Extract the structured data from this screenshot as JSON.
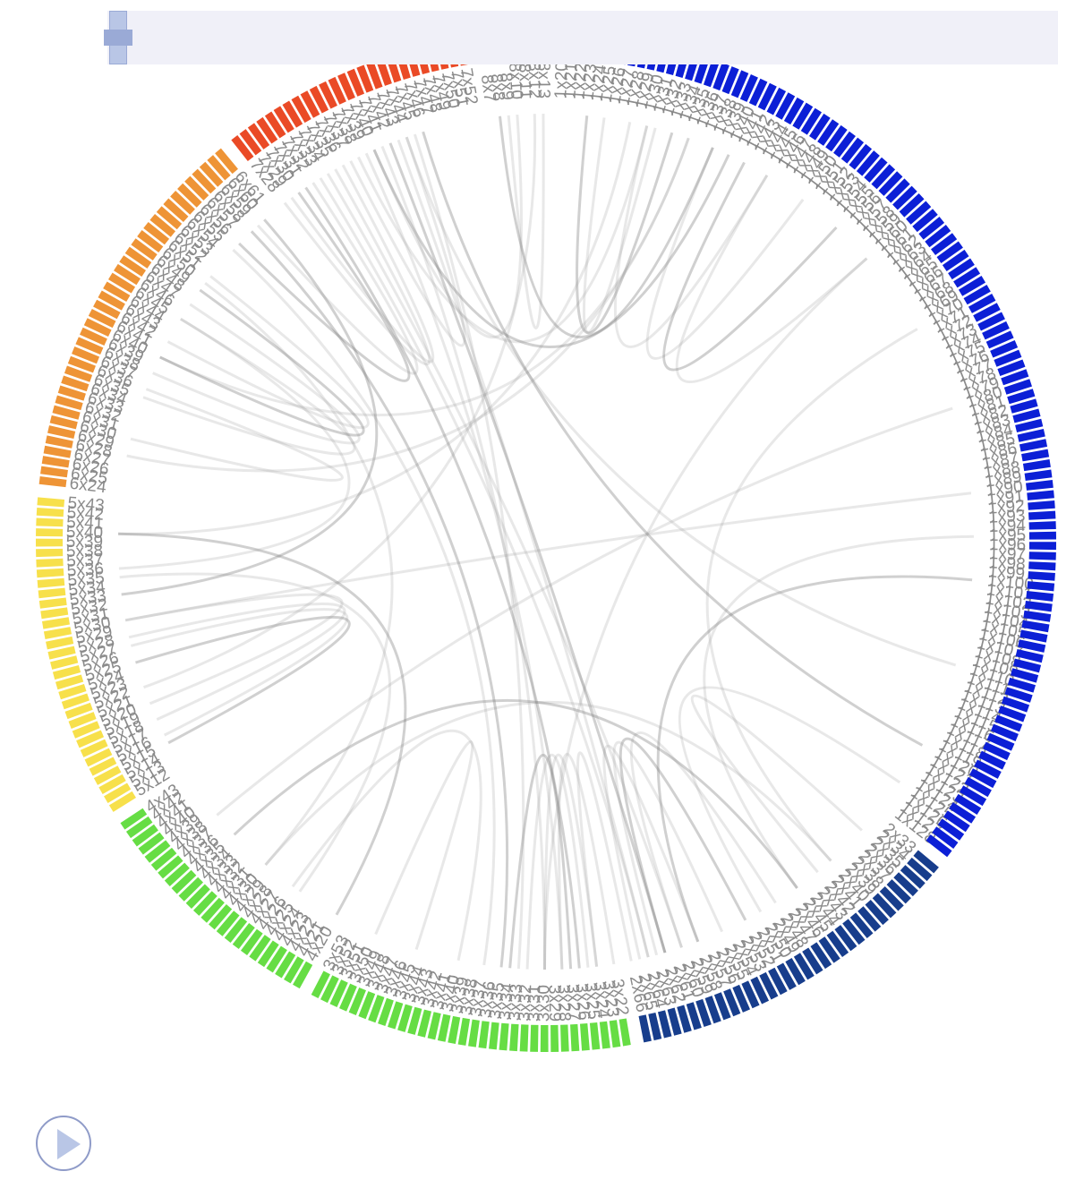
{
  "groups": [
    {
      "id": "1",
      "color": "#0c1fd6",
      "prefix": "1x",
      "from": 20,
      "to": 128
    },
    {
      "id": "2",
      "color": "#173d8c",
      "prefix": "2x",
      "from": 33,
      "to": 66
    },
    {
      "id": "3",
      "color": "#66dd44",
      "prefix": "3x",
      "from": 22,
      "to": 53
    },
    {
      "id": "4",
      "color": "#66dd44",
      "prefix": "4x",
      "from": 20,
      "to": 43
    },
    {
      "id": "5",
      "color": "#f7e04b",
      "prefix": "5x",
      "from": 12,
      "to": 43
    },
    {
      "id": "6",
      "color": "#ee9436",
      "prefix": "6x",
      "from": 24,
      "to": 61
    },
    {
      "id": "7",
      "color": "#ea4a26",
      "prefix": "7x",
      "from": 28,
      "to": 52
    },
    {
      "id": "8",
      "color": "#e8321c",
      "prefix": "8x",
      "from": 7,
      "to": 13
    }
  ],
  "chart_data": {
    "type": "chord",
    "groups_order": [
      "1x",
      "2x",
      "3x",
      "4x",
      "5x",
      "6x",
      "7x",
      "8x"
    ],
    "visible_labels_sample": [
      "1x20",
      "1x21",
      "1x22",
      "1x128",
      "2x33",
      "2x60",
      "2x61",
      "2x62",
      "2x63",
      "2x64",
      "2x65",
      "2x66",
      "3x22",
      "3x23",
      "3x24",
      "3x25",
      "3x26",
      "3x27",
      "3x28",
      "3x30",
      "3x33",
      "4x20",
      "4x43",
      "5x43",
      "6x24",
      "6x61",
      "6x60",
      "6x59",
      "6x58",
      "7x28",
      "7x29",
      "7x30",
      "7x31",
      "7x32",
      "7x33",
      "7x34",
      "7x35",
      "7x36",
      "7x37",
      "7x38",
      "7x39",
      "7x40",
      "7x41",
      "7x42",
      "7x43",
      "7x44",
      "7x45",
      "7x46",
      "8x7",
      "8x13"
    ]
  },
  "links": [
    [
      "1x23",
      "1x33"
    ],
    [
      "1x25",
      "1x31"
    ],
    [
      "1x45",
      "1x30"
    ],
    [
      "1x50",
      "1x38"
    ],
    [
      "1x55",
      "1x42"
    ],
    [
      "1x60",
      "1x45"
    ],
    [
      "1x70",
      "2x40"
    ],
    [
      "1x95",
      "2x45"
    ],
    [
      "1x100",
      "2x58"
    ],
    [
      "1x35",
      "6x40"
    ],
    [
      "1x28",
      "5x40"
    ],
    [
      "1x30",
      "7x38"
    ],
    [
      "1x40",
      "7x40"
    ],
    [
      "1x60",
      "3x30"
    ],
    [
      "1x90",
      "5x30"
    ],
    [
      "1x110",
      "7x44"
    ],
    [
      "1x120",
      "7x46"
    ],
    [
      "1x125",
      "2x50"
    ],
    [
      "2x35",
      "2x42"
    ],
    [
      "2x48",
      "2x60"
    ],
    [
      "2x52",
      "2x62"
    ],
    [
      "2x55",
      "2x63"
    ],
    [
      "2x58",
      "2x65"
    ],
    [
      "2x60",
      "7x34"
    ],
    [
      "2x62",
      "7x42"
    ],
    [
      "2x64",
      "7x43"
    ],
    [
      "2x66",
      "3x24"
    ],
    [
      "2x40",
      "4x30"
    ],
    [
      "2x45",
      "4x35"
    ],
    [
      "3x22",
      "3x28"
    ],
    [
      "3x24",
      "3x30"
    ],
    [
      "3x25",
      "3x32"
    ],
    [
      "3x27",
      "3x34"
    ],
    [
      "3x28",
      "7x39"
    ],
    [
      "3x30",
      "7x41"
    ],
    [
      "3x33",
      "7x45"
    ],
    [
      "3x35",
      "6x58"
    ],
    [
      "3x37",
      "6x55"
    ],
    [
      "3x40",
      "4x26"
    ],
    [
      "3x45",
      "3x50"
    ],
    [
      "4x20",
      "5x40"
    ],
    [
      "4x25",
      "5x35"
    ],
    [
      "4x30",
      "6x50"
    ],
    [
      "4x38",
      "1x80"
    ],
    [
      "5x15",
      "5x25"
    ],
    [
      "5x16",
      "5x27"
    ],
    [
      "5x18",
      "5x28"
    ],
    [
      "5x20",
      "5x30"
    ],
    [
      "5x33",
      "6x60"
    ],
    [
      "5x36",
      "6x45"
    ],
    [
      "6x35",
      "6x45"
    ],
    [
      "6x38",
      "6x47"
    ],
    [
      "6x40",
      "6x49"
    ],
    [
      "6x42",
      "6x51"
    ],
    [
      "6x30",
      "6x36"
    ],
    [
      "6x28",
      "1x35"
    ],
    [
      "6x56",
      "7x30"
    ],
    [
      "6x59",
      "7x32"
    ],
    [
      "7x28",
      "7x35"
    ],
    [
      "7x29",
      "7x36"
    ],
    [
      "7x31",
      "3x26"
    ],
    [
      "7x33",
      "2x64"
    ],
    [
      "7x37",
      "7x44"
    ],
    [
      "7x40",
      "8x10"
    ],
    [
      "8x8",
      "1x38"
    ],
    [
      "8x12",
      "5x22"
    ],
    [
      "8x13",
      "8x9"
    ]
  ],
  "player": {
    "play_icon": "play-icon",
    "progress": 0.0
  }
}
